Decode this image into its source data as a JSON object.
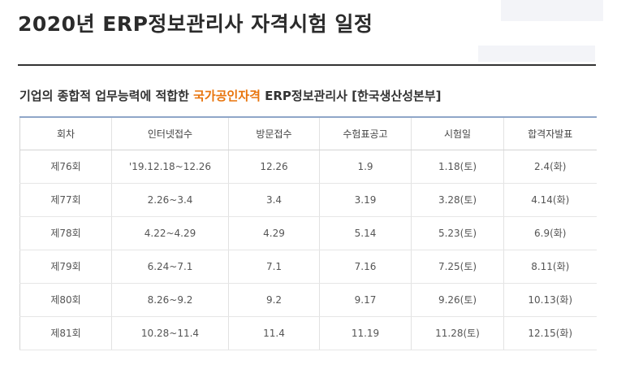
{
  "header": {
    "title": "2020년 ERP정보관리사 자격시험 일정"
  },
  "intro": {
    "before": "기업의 종합적 업무능력에 적합한 ",
    "highlight": "국가공인자격",
    "after": " ERP정보관리사 [한국생산성본부]"
  },
  "colors": {
    "highlight": "#e8740c",
    "table_top_border": "#8fa6c8",
    "title_text": "#2b2b2b"
  },
  "table": {
    "columns": [
      "회차",
      "인터넷접수",
      "방문접수",
      "수험표공고",
      "시험일",
      "합격자발표"
    ],
    "rows": [
      [
        "제76회",
        "'19.12.18~12.26",
        "12.26",
        "1.9",
        "1.18(토)",
        "2.4(화)"
      ],
      [
        "제77회",
        "2.26~3.4",
        "3.4",
        "3.19",
        "3.28(토)",
        "4.14(화)"
      ],
      [
        "제78회",
        "4.22~4.29",
        "4.29",
        "5.14",
        "5.23(토)",
        "6.9(화)"
      ],
      [
        "제79회",
        "6.24~7.1",
        "7.1",
        "7.16",
        "7.25(토)",
        "8.11(화)"
      ],
      [
        "제80회",
        "8.26~9.2",
        "9.2",
        "9.17",
        "9.26(토)",
        "10.13(화)"
      ],
      [
        "제81회",
        "10.28~11.4",
        "11.4",
        "11.19",
        "11.28(토)",
        "12.15(화)"
      ]
    ]
  }
}
